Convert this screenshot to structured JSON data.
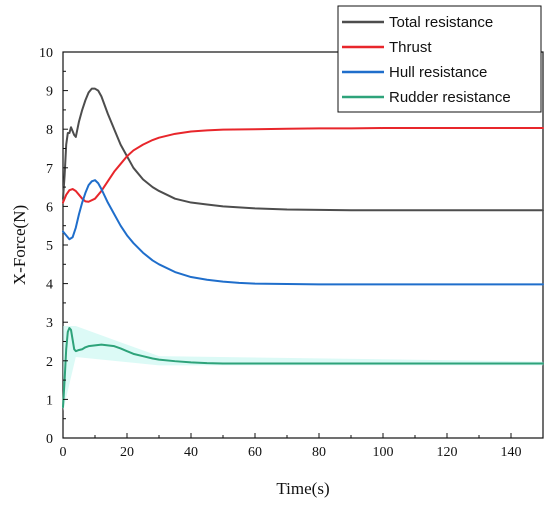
{
  "chart_data": {
    "type": "line",
    "title": "",
    "xlabel": "Time(s)",
    "ylabel": "X-Force(N)",
    "xlim": [
      0,
      150
    ],
    "ylim": [
      0,
      10
    ],
    "xticks": [
      0,
      20,
      40,
      60,
      80,
      100,
      120,
      140
    ],
    "yticks": [
      0,
      1,
      2,
      3,
      4,
      5,
      6,
      7,
      8,
      9,
      10
    ],
    "grid": false,
    "legend_position": "top-right",
    "series": [
      {
        "name": "Total resistance",
        "color": "#4d4d4d",
        "x": [
          0,
          0.5,
          1,
          1.5,
          2,
          2.5,
          3,
          3.5,
          4,
          5,
          6,
          7,
          8,
          9,
          10,
          11,
          12,
          14,
          16,
          18,
          20,
          22,
          25,
          28,
          30,
          35,
          40,
          45,
          50,
          60,
          70,
          80,
          90,
          100,
          110,
          120,
          130,
          140,
          150
        ],
        "y": [
          6.2,
          6.8,
          7.6,
          7.9,
          7.9,
          8.05,
          7.95,
          7.85,
          7.8,
          8.2,
          8.5,
          8.75,
          8.95,
          9.05,
          9.05,
          9.0,
          8.85,
          8.4,
          8.0,
          7.6,
          7.3,
          7.0,
          6.7,
          6.5,
          6.4,
          6.2,
          6.1,
          6.05,
          6.0,
          5.95,
          5.92,
          5.91,
          5.9,
          5.9,
          5.9,
          5.9,
          5.9,
          5.9,
          5.9
        ]
      },
      {
        "name": "Thrust",
        "color": "#e8262b",
        "x": [
          0,
          1,
          2,
          3,
          4,
          5,
          6,
          7,
          8,
          10,
          12,
          14,
          16,
          18,
          20,
          22,
          25,
          28,
          30,
          35,
          40,
          45,
          50,
          60,
          70,
          80,
          90,
          100,
          120,
          140,
          150
        ],
        "y": [
          6.1,
          6.3,
          6.42,
          6.45,
          6.4,
          6.3,
          6.2,
          6.13,
          6.12,
          6.2,
          6.4,
          6.65,
          6.9,
          7.1,
          7.3,
          7.45,
          7.6,
          7.72,
          7.78,
          7.88,
          7.94,
          7.97,
          7.99,
          8.0,
          8.01,
          8.02,
          8.02,
          8.03,
          8.03,
          8.03,
          8.03
        ]
      },
      {
        "name": "Hull resistance",
        "color": "#1f6ecb",
        "x": [
          0,
          1,
          2,
          3,
          4,
          5,
          6,
          7,
          8,
          9,
          10,
          11,
          12,
          14,
          16,
          18,
          20,
          22,
          25,
          28,
          30,
          35,
          40,
          45,
          50,
          55,
          60,
          70,
          80,
          90,
          100,
          120,
          140,
          150
        ],
        "y": [
          5.35,
          5.25,
          5.15,
          5.2,
          5.45,
          5.8,
          6.1,
          6.35,
          6.55,
          6.65,
          6.68,
          6.6,
          6.45,
          6.1,
          5.8,
          5.5,
          5.25,
          5.05,
          4.8,
          4.6,
          4.5,
          4.3,
          4.17,
          4.1,
          4.05,
          4.02,
          4.0,
          3.99,
          3.98,
          3.98,
          3.98,
          3.98,
          3.98,
          3.98
        ]
      },
      {
        "name": "Rudder resistance",
        "color": "#2ea37a",
        "x": [
          0,
          0.5,
          1,
          1.5,
          2,
          2.5,
          3,
          3.5,
          4,
          5,
          6,
          7,
          8,
          10,
          12,
          14,
          16,
          18,
          20,
          22,
          25,
          28,
          30,
          35,
          40,
          45,
          50,
          60,
          70,
          80,
          90,
          100,
          120,
          140,
          150
        ],
        "y": [
          0.8,
          1.5,
          2.3,
          2.75,
          2.85,
          2.8,
          2.55,
          2.3,
          2.25,
          2.28,
          2.3,
          2.35,
          2.38,
          2.4,
          2.42,
          2.4,
          2.38,
          2.32,
          2.25,
          2.18,
          2.12,
          2.06,
          2.03,
          1.99,
          1.96,
          1.94,
          1.93,
          1.93,
          1.93,
          1.93,
          1.93,
          1.93,
          1.93,
          1.93,
          1.93
        ]
      }
    ]
  }
}
